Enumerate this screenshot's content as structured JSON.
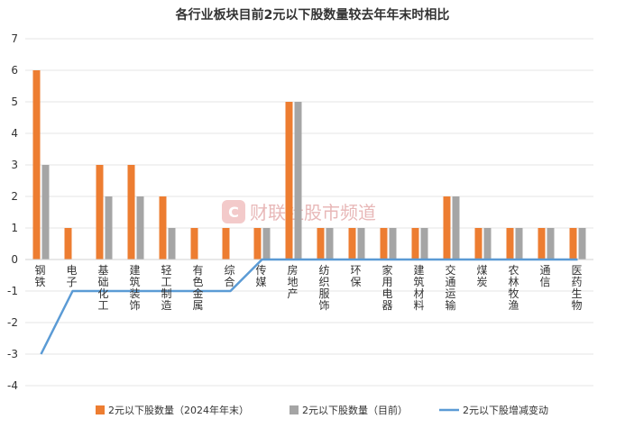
{
  "chart_data": {
    "type": "bar",
    "title": "各行业板块目前2元以下股数量较去年年末时相比",
    "categories": [
      "钢铁",
      "电子",
      "基础化工",
      "建筑装饰",
      "轻工制造",
      "有色金属",
      "综合",
      "传媒",
      "房地产",
      "纺织服饰",
      "环保",
      "家用电器",
      "建筑材料",
      "交通运输",
      "煤炭",
      "农林牧渔",
      "通信",
      "医药生物"
    ],
    "series": [
      {
        "name": "2元以下股数量（2024年年末）",
        "type": "bar",
        "color": "#ED7D31",
        "values": [
          6,
          1,
          3,
          3,
          2,
          1,
          1,
          1,
          5,
          1,
          1,
          1,
          1,
          2,
          1,
          1,
          1,
          1
        ]
      },
      {
        "name": "2元以下股数量（目前）",
        "type": "bar",
        "color": "#A5A5A5",
        "values": [
          3,
          0,
          2,
          2,
          1,
          0,
          0,
          1,
          5,
          1,
          1,
          1,
          1,
          2,
          1,
          1,
          1,
          1
        ]
      },
      {
        "name": "2元以下股增减变动",
        "type": "line",
        "color": "#5B9BD5",
        "values": [
          -3,
          -1,
          -1,
          -1,
          -1,
          -1,
          -1,
          0,
          0,
          0,
          0,
          0,
          0,
          0,
          0,
          0,
          0,
          0
        ]
      }
    ],
    "yticks": [
      7,
      6,
      5,
      4,
      3,
      2,
      1,
      0,
      -1,
      -2,
      -3,
      -4
    ],
    "ylim": [
      -4,
      7
    ],
    "grid": true,
    "legend": "bottom"
  },
  "watermark": {
    "icon": "c-logo-icon",
    "text": "财联社股市频道"
  }
}
